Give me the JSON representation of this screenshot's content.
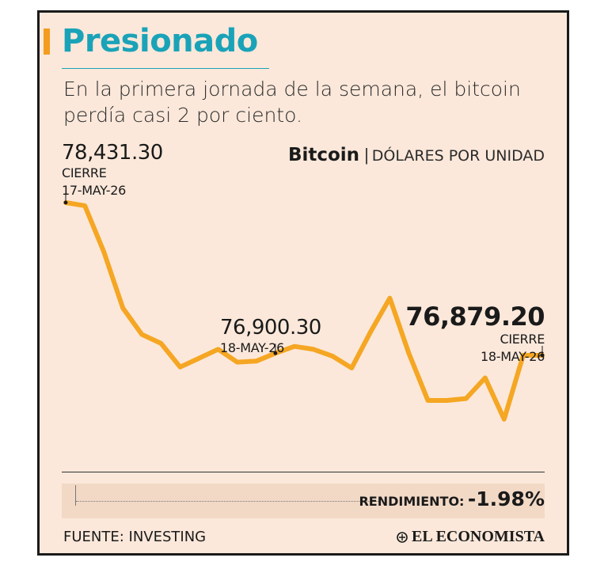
{
  "header": {
    "title": "Presionado",
    "subtitle": "En la primera jornada de la semana, el bitcoin perdía casi 2 por ciento."
  },
  "chart_head": {
    "name": "Bitcoin",
    "separator": "|",
    "unit": "DÓLARES POR UNIDAD"
  },
  "annotations": {
    "start": {
      "value": "78,431.30",
      "label1": "CIERRE",
      "label2": "17-MAY-26"
    },
    "mid": {
      "value": "76,900.30",
      "label1": "18-MAY-26"
    },
    "end": {
      "value": "76,879.20",
      "label1": "CIERRE",
      "label2": "18-MAY-26"
    }
  },
  "return_row": {
    "label": "RENDIMIENTO:",
    "value": "-1.98%"
  },
  "footer": {
    "source": "FUENTE: INVESTING",
    "brand": "EL ECONOMISTA"
  },
  "colors": {
    "line": "#f5a623",
    "title": "#1aa3b8",
    "accent": "#f39c20",
    "background": "#fbe8da"
  },
  "chart_data": {
    "type": "line",
    "title": "Bitcoin",
    "ylabel": "DÓLARES POR UNIDAD",
    "ylim": [
      75600,
      78600
    ],
    "grid": false,
    "series": [
      {
        "values": [
          78431.3,
          78400,
          77930,
          77360,
          77090,
          77000,
          76760,
          76850,
          76940,
          76810,
          76820,
          76900.3,
          76970,
          76940,
          76870,
          76750,
          77120,
          77460,
          76900,
          76420,
          76420,
          76440,
          76650,
          76230,
          76879.2,
          76879.2
        ]
      }
    ],
    "markers": [
      {
        "index": 0,
        "value": 78431.3
      },
      {
        "index": 11,
        "value": 76900.3
      },
      {
        "index": 25,
        "value": 76879.2
      }
    ]
  }
}
